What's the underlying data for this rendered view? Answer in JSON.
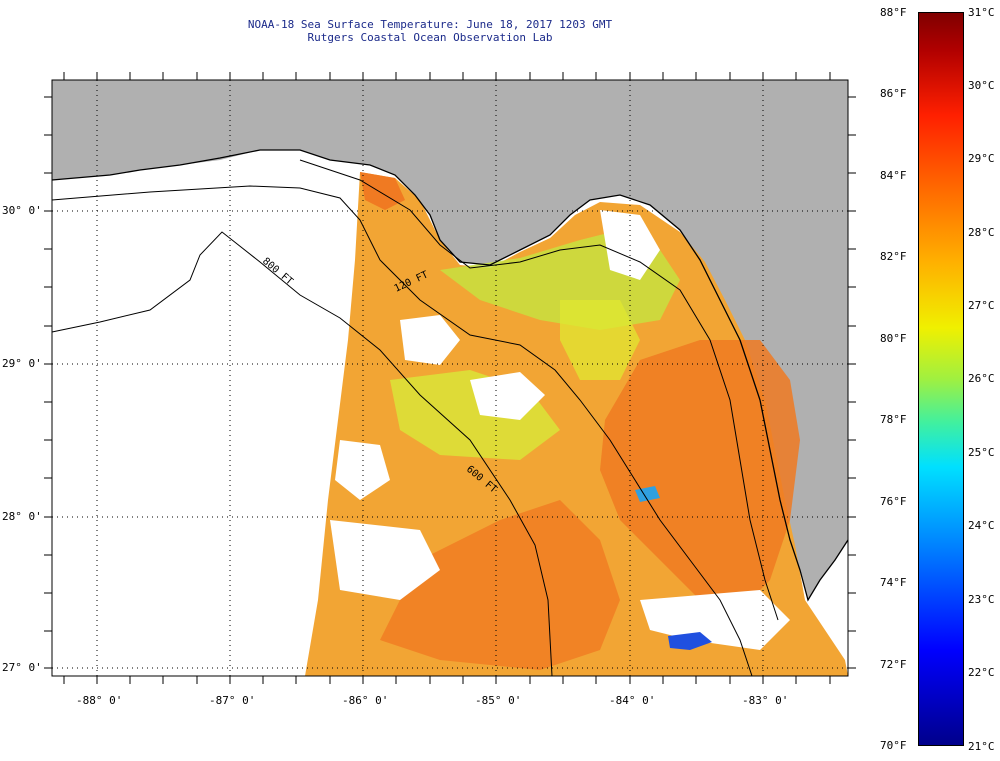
{
  "title_line1": "NOAA-18 Sea Surface Temperature:  June 18, 2017 1203 GMT",
  "title_line2": "Rutgers Coastal Ocean Observation Lab",
  "lat_labels": [
    "30° 0'",
    "29° 0'",
    "28° 0'",
    "27° 0'"
  ],
  "lon_labels": [
    "-88° 0'",
    "-87° 0'",
    "-86° 0'",
    "-85° 0'",
    "-84° 0'",
    "-83° 0'"
  ],
  "contour_labels": [
    "800 FT",
    "120 FT",
    "600 FT"
  ],
  "colorbar": {
    "fahrenheit_ticks": [
      "88°F",
      "86°F",
      "84°F",
      "82°F",
      "80°F",
      "78°F",
      "76°F",
      "74°F",
      "72°F",
      "70°F"
    ],
    "celsius_ticks": [
      "31°C",
      "30°C",
      "29°C",
      "28°C",
      "27°C",
      "26°C",
      "25°C",
      "24°C",
      "23°C",
      "22°C",
      "21°C"
    ],
    "min_color": "#00008b",
    "max_color": "#800000"
  },
  "colors": {
    "land": "#b0b0b0",
    "no_data": "#ffffff",
    "warm_water": "#f0a030",
    "hot_water": "#f07020"
  }
}
